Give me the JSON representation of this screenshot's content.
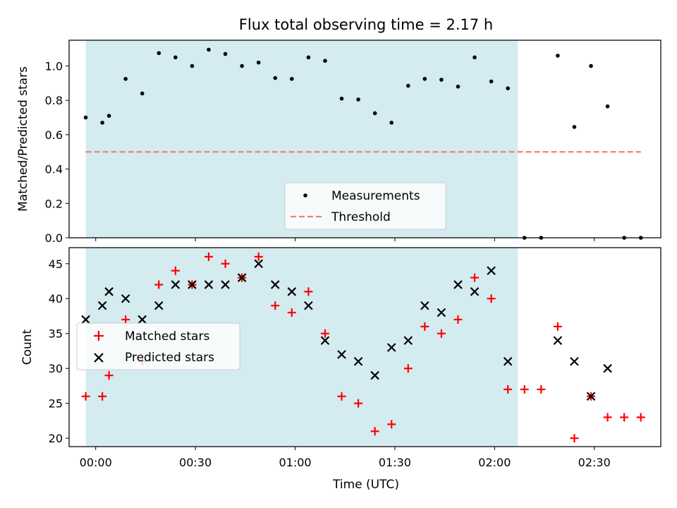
{
  "figure": {
    "title": "Flux total observing time = 2.17 h"
  },
  "chart_data": [
    {
      "type": "scatter",
      "title": "Flux total observing time = 2.17 h",
      "xlabel": "",
      "ylabel": "Matched/Predicted stars",
      "xlim": [
        -8,
        170
      ],
      "ylim": [
        0.0,
        1.15
      ],
      "yticks": [
        0.0,
        0.2,
        0.4,
        0.6,
        0.8,
        1.0
      ],
      "ytick_labels": [
        "0.0",
        "0.2",
        "0.4",
        "0.6",
        "0.8",
        "1.0"
      ],
      "xticks": [
        0,
        30,
        60,
        90,
        120,
        150
      ],
      "shaded_span": [
        -3,
        127
      ],
      "shade_color": "#d4ebf0",
      "legend": {
        "placement": "lower-center",
        "entries": [
          "Measurements",
          "Threshold"
        ]
      },
      "series": [
        {
          "name": "Measurements",
          "marker": "dot",
          "color": "#000000",
          "x": [
            -3,
            2,
            4,
            9,
            14,
            19,
            24,
            29,
            34,
            39,
            44,
            49,
            54,
            59,
            64,
            69,
            74,
            79,
            84,
            89,
            94,
            99,
            104,
            109,
            114,
            119,
            124,
            129,
            134,
            139,
            144,
            149,
            154,
            159,
            164
          ],
          "y": [
            0.7,
            0.67,
            0.71,
            0.925,
            0.84,
            1.075,
            1.05,
            1.0,
            1.095,
            1.07,
            1.0,
            1.02,
            0.93,
            0.925,
            1.05,
            1.03,
            0.81,
            0.805,
            0.725,
            0.67,
            0.885,
            0.925,
            0.92,
            0.88,
            1.05,
            0.91,
            0.87,
            0.0,
            0.0,
            1.06,
            0.645,
            1.0,
            0.765,
            0.0,
            0.0
          ]
        },
        {
          "name": "Threshold",
          "marker": "dashed-line",
          "color": "#f08080",
          "x": [
            -3,
            164
          ],
          "y": [
            0.5,
            0.5
          ]
        }
      ]
    },
    {
      "type": "scatter",
      "title": "",
      "xlabel": "Time (UTC)",
      "ylabel": "Count",
      "xlim": [
        -8,
        170
      ],
      "ylim": [
        18.8,
        47.3
      ],
      "yticks": [
        20,
        25,
        30,
        35,
        40,
        45
      ],
      "ytick_labels": [
        "20",
        "25",
        "30",
        "35",
        "40",
        "45"
      ],
      "xticks": [
        0,
        30,
        60,
        90,
        120,
        150
      ],
      "xtick_labels": [
        "00:00",
        "00:30",
        "01:00",
        "01:30",
        "02:00",
        "02:30"
      ],
      "shaded_span": [
        -3,
        127
      ],
      "shade_color": "#d4ebf0",
      "legend": {
        "placement": "center-left",
        "entries": [
          "Matched stars",
          "Predicted stars"
        ]
      },
      "series": [
        {
          "name": "Matched stars",
          "marker": "plus",
          "color": "#ff0000",
          "x": [
            -3,
            2,
            4,
            9,
            14,
            19,
            24,
            29,
            34,
            39,
            44,
            49,
            54,
            59,
            64,
            69,
            74,
            79,
            84,
            89,
            94,
            99,
            104,
            109,
            114,
            119,
            124,
            129,
            134,
            139,
            144,
            149,
            154,
            159,
            164
          ],
          "y": [
            26,
            26,
            29,
            37,
            31,
            42,
            44,
            42,
            46,
            45,
            43,
            46,
            39,
            38,
            41,
            35,
            26,
            25,
            21,
            22,
            30,
            36,
            35,
            37,
            43,
            40,
            27,
            27,
            27,
            36,
            20,
            26,
            23,
            23,
            23
          ]
        },
        {
          "name": "Predicted stars",
          "marker": "x",
          "color": "#000000",
          "x": [
            -3,
            2,
            4,
            9,
            14,
            19,
            24,
            29,
            34,
            39,
            44,
            49,
            54,
            59,
            64,
            69,
            74,
            79,
            84,
            89,
            94,
            99,
            104,
            109,
            114,
            119,
            124,
            139,
            144,
            149,
            154
          ],
          "y": [
            37,
            39,
            41,
            40,
            37,
            39,
            42,
            42,
            42,
            42,
            43,
            45,
            42,
            41,
            39,
            34,
            32,
            31,
            29,
            33,
            34,
            39,
            38,
            42,
            41,
            44,
            31,
            34,
            31,
            26,
            30
          ]
        }
      ]
    }
  ]
}
